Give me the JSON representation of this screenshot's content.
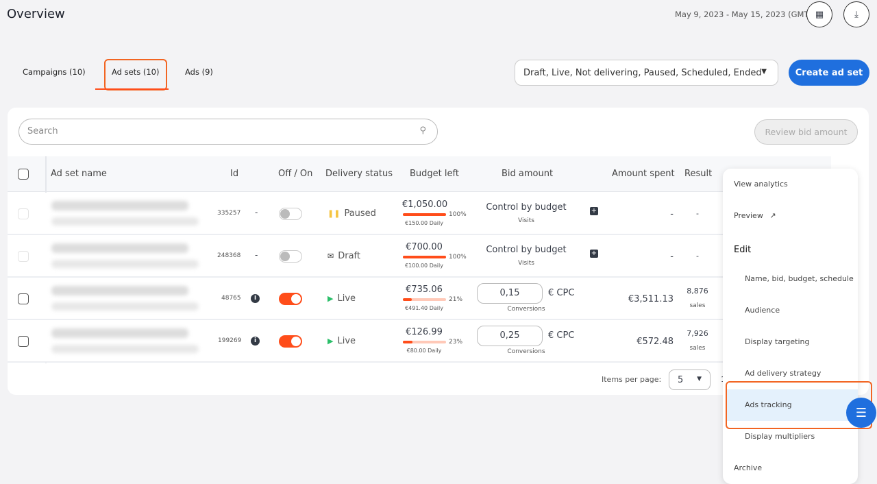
{
  "header": {
    "title": "Overview",
    "date_range": "May 9, 2023 - May 15, 2023 (GMT)",
    "calendar_icon": "calendar-icon",
    "download_icon": "download-icon"
  },
  "tabs": [
    {
      "label": "Campaigns (10)"
    },
    {
      "label": "Ad sets (10)",
      "active": true
    },
    {
      "label": "Ads (9)"
    }
  ],
  "filter": {
    "value": "Draft, Live, Not delivering, Paused, Scheduled, Ended"
  },
  "create_label": "Create ad set",
  "search": {
    "placeholder": "Search"
  },
  "review_label": "Review bid amount",
  "columns": [
    "Ad set name",
    "Id",
    "Off / On",
    "Delivery status",
    "Budget left",
    "Bid amount",
    "Amount spent",
    "Result"
  ],
  "rows": [
    {
      "id": "335257",
      "info": "-",
      "on": false,
      "status": "Paused",
      "budget": "€1,050.00",
      "pct": "100%",
      "pct_value": 100,
      "daily": "€150.00 Daily",
      "bid": "Control by budget",
      "bid_sub": "Visits",
      "spent": "-",
      "result": "-",
      "result_sub": ""
    },
    {
      "id": "248368",
      "info": "-",
      "on": false,
      "status": "Draft",
      "budget": "€700.00",
      "pct": "100%",
      "pct_value": 100,
      "daily": "€100.00 Daily",
      "bid": "Control by budget",
      "bid_sub": "Visits",
      "spent": "-",
      "result": "-",
      "result_sub": ""
    },
    {
      "id": "48765",
      "info": "",
      "on": true,
      "status": "Live",
      "budget": "€735.06",
      "pct": "21%",
      "pct_value": 21,
      "daily": "€491.40 Daily",
      "bid": "0,15",
      "bid_unit": "€ CPC",
      "bid_sub": "Conversions",
      "spent": "€3,511.13",
      "result": "8,876",
      "result_sub": "sales"
    },
    {
      "id": "199269",
      "info": "",
      "on": true,
      "status": "Live",
      "budget": "€126.99",
      "pct": "23%",
      "pct_value": 23,
      "daily": "€80.00 Daily",
      "bid": "0,25",
      "bid_unit": "€ CPC",
      "bid_sub": "Conversions",
      "spent": "€572.48",
      "result": "7,926",
      "result_sub": "sales"
    }
  ],
  "pagination": {
    "label": "Items per page:",
    "value": "5",
    "page": "1"
  },
  "menu": {
    "view_analytics": "View analytics",
    "preview": "Preview",
    "edit": "Edit",
    "items": [
      "Name, bid, budget, schedule",
      "Audience",
      "Display targeting",
      "Ad delivery strategy",
      "Ads tracking",
      "Display multipliers"
    ],
    "archive": "Archive"
  },
  "colors": {
    "accent": "#1f6fde",
    "orange": "#ff4d1a",
    "highlight": "#f26522"
  }
}
